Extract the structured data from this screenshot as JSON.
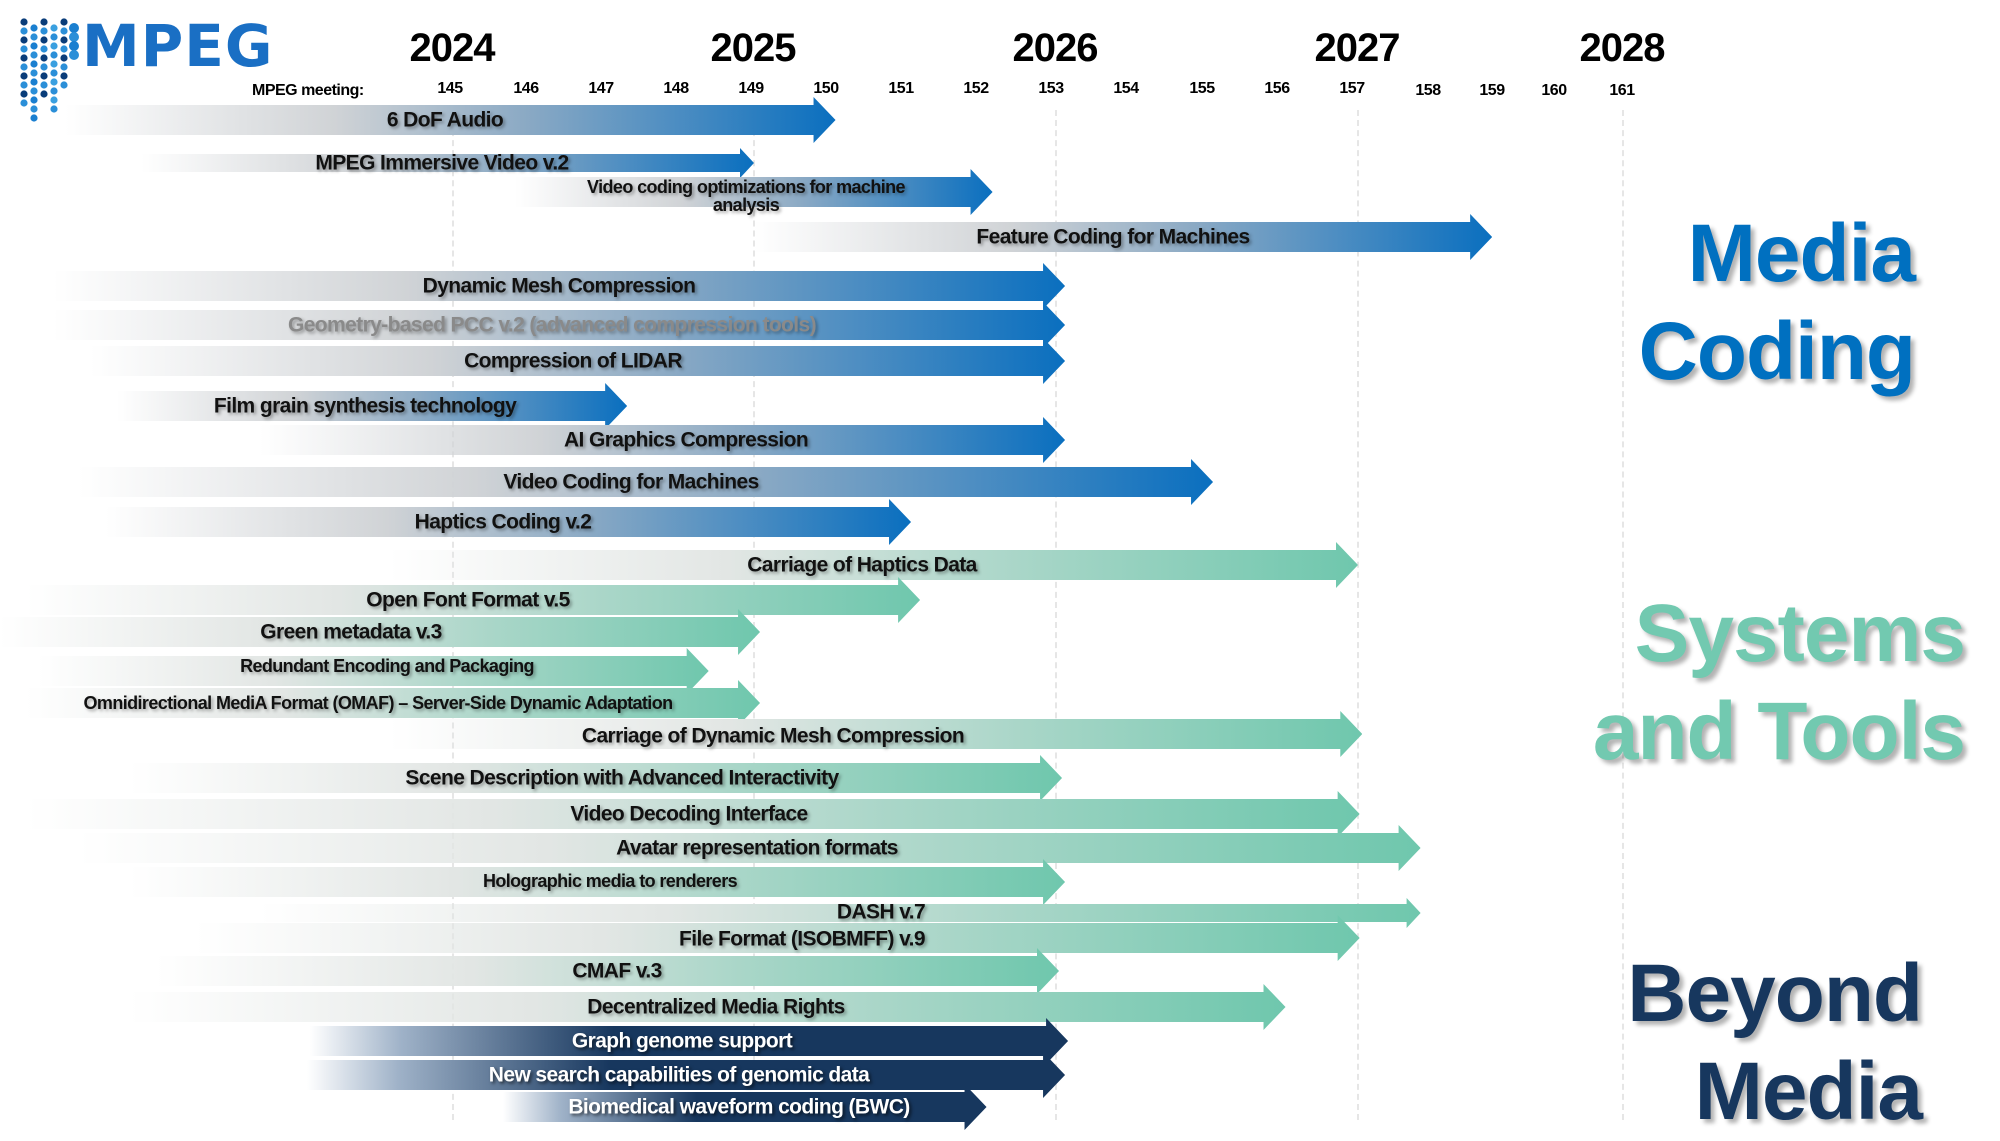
{
  "logo": {
    "text": "MPEG",
    "icon": "mpeg-dots-logo"
  },
  "axis": {
    "meeting_label": "MPEG meeting:",
    "years": [
      "2024",
      "2025",
      "2026",
      "2027",
      "2028"
    ],
    "meetings": [
      "145",
      "146",
      "147",
      "148",
      "149",
      "150",
      "151",
      "152",
      "153",
      "154",
      "155",
      "156",
      "157",
      "158",
      "159",
      "160",
      "161"
    ]
  },
  "colors": {
    "media_coding": "#0070C0",
    "systems_tools": "#72C9B0",
    "beyond_media": "#17375E"
  },
  "headings": {
    "media_coding": "Media Coding",
    "systems_tools": "Systems and Tools",
    "beyond_media": "Beyond Media"
  },
  "chart_data": {
    "type": "timeline",
    "unit": "year",
    "groups": [
      "media_coding",
      "systems_tools",
      "beyond_media"
    ],
    "items": [
      {
        "label": "6 DoF Audio",
        "group": "media_coding",
        "start": 2022.72,
        "end": 2025.27
      },
      {
        "label": "MPEG Immersive Video v.2",
        "group": "media_coding",
        "start": 2022.97,
        "end": 2025.0
      },
      {
        "label": "Video coding optimizations for machine analysis",
        "group": "media_coding",
        "start": 2024.21,
        "end": 2025.79
      },
      {
        "label": "Feature Coding for Machines",
        "group": "media_coding",
        "start": 2025.0,
        "end": 2027.51
      },
      {
        "label": "Dynamic Mesh Compression",
        "group": "media_coding",
        "start": 2022.68,
        "end": 2026.03
      },
      {
        "label": "Geometry-based PCC v.2 (advanced compression tools)",
        "group": "media_coding",
        "start": 2022.68,
        "end": 2026.03
      },
      {
        "label": "Compression of LIDAR",
        "group": "media_coding",
        "start": 2022.8,
        "end": 2026.03
      },
      {
        "label": "Film grain synthesis technology",
        "group": "media_coding",
        "start": 2022.89,
        "end": 2024.58
      },
      {
        "label": "AI Graphics Compression",
        "group": "media_coding",
        "start": 2023.36,
        "end": 2026.03
      },
      {
        "label": "Video Coding for Machines",
        "group": "media_coding",
        "start": 2022.76,
        "end": 2026.52
      },
      {
        "label": "Haptics  Coding v.2",
        "group": "media_coding",
        "start": 2022.85,
        "end": 2025.52
      },
      {
        "label": "Carriage of Haptics Data",
        "group": "systems_tools",
        "start": 2023.79,
        "end": 2027.0
      },
      {
        "label": "Open Font Format v.5",
        "group": "systems_tools",
        "start": 2022.59,
        "end": 2025.55
      },
      {
        "label": "Green metadata v.3",
        "group": "systems_tools",
        "start": 2022.5,
        "end": 2025.02
      },
      {
        "label": "Redundant Encoding and Packaging",
        "group": "systems_tools",
        "start": 2022.63,
        "end": 2024.85
      },
      {
        "label": "Omnidirectional MediA Format (OMAF) – Server-Side Dynamic Adaptation",
        "group": "systems_tools",
        "start": 2022.59,
        "end": 2025.02
      },
      {
        "label": "Carriage of Dynamic Mesh Compression",
        "group": "systems_tools",
        "start": 2023.79,
        "end": 2027.02
      },
      {
        "label": "Scene Description with Advanced Interactivity",
        "group": "systems_tools",
        "start": 2022.93,
        "end": 2026.02
      },
      {
        "label": "Video Decoding  Interface",
        "group": "systems_tools",
        "start": 2022.59,
        "end": 2027.01
      },
      {
        "label": "Avatar representation formats",
        "group": "systems_tools",
        "start": 2022.76,
        "end": 2027.24
      },
      {
        "label": "Holographic media to renderers",
        "group": "systems_tools",
        "start": 2022.93,
        "end": 2026.03
      },
      {
        "label": "DASH v.7",
        "group": "systems_tools",
        "start": 2023.36,
        "end": 2027.24
      },
      {
        "label": "File Format (ISOBMFF) v.9",
        "group": "systems_tools",
        "start": 2023.15,
        "end": 2027.01
      },
      {
        "label": "CMAF v.3",
        "group": "systems_tools",
        "start": 2023.02,
        "end": 2026.01
      },
      {
        "label": "Decentralized Media Rights",
        "group": "systems_tools",
        "start": 2022.93,
        "end": 2026.76
      },
      {
        "label": "Graph genome support",
        "group": "beyond_media",
        "start": 2023.53,
        "end": 2026.04
      },
      {
        "label": "New search capabilities of genomic data",
        "group": "beyond_media",
        "start": 2023.52,
        "end": 2026.03
      },
      {
        "label": "Biomedical waveform coding (BWC)",
        "group": "beyond_media",
        "start": 2024.17,
        "end": 2025.77
      }
    ]
  }
}
